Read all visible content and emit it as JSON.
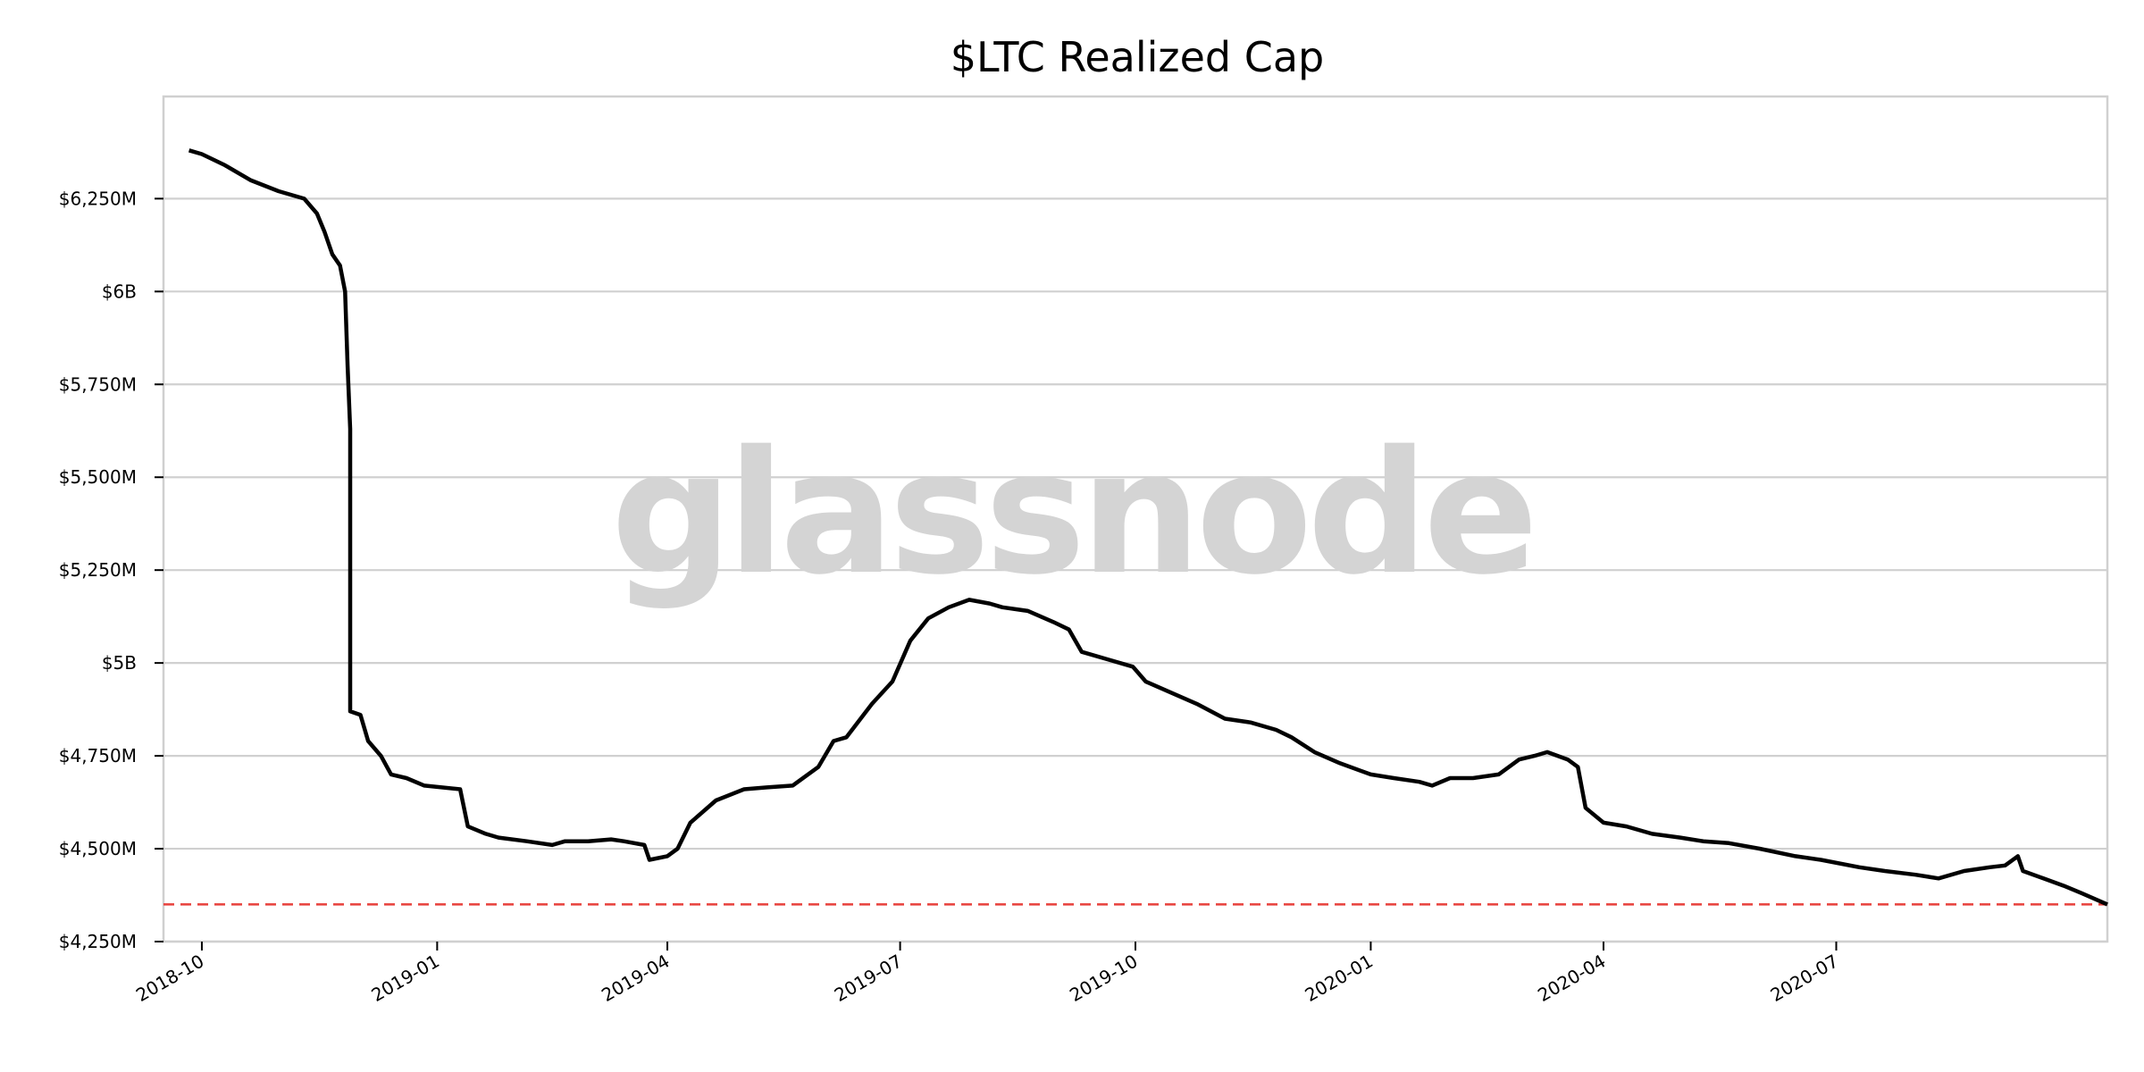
{
  "watermark": "glassnode",
  "chart_data": {
    "type": "line",
    "title": "$LTC Realized Cap",
    "xlabel": "",
    "ylabel": "",
    "x_axis": "date",
    "xlim": [
      "2018-09-16",
      "2020-10-15"
    ],
    "ylim": [
      4250,
      6525
    ],
    "y_unit": "millions USD",
    "grid": "horizontal",
    "x_ticks": [
      {
        "date": "2018-10-01",
        "label": "2018-10"
      },
      {
        "date": "2019-01-01",
        "label": "2019-01"
      },
      {
        "date": "2019-04-01",
        "label": "2019-04"
      },
      {
        "date": "2019-07-01",
        "label": "2019-07"
      },
      {
        "date": "2019-10-01",
        "label": "2019-10"
      },
      {
        "date": "2020-01-01",
        "label": "2020-01"
      },
      {
        "date": "2020-04-01",
        "label": "2020-04"
      },
      {
        "date": "2020-07-01",
        "label": "2020-07"
      }
    ],
    "y_ticks": [
      {
        "value": 4250,
        "label": "$4,250M"
      },
      {
        "value": 4500,
        "label": "$4,500M"
      },
      {
        "value": 4750,
        "label": "$4,750M"
      },
      {
        "value": 5000,
        "label": "$5B"
      },
      {
        "value": 5250,
        "label": "$5,250M"
      },
      {
        "value": 5500,
        "label": "$5,500M"
      },
      {
        "value": 5750,
        "label": "$5,750M"
      },
      {
        "value": 6000,
        "label": "$6B"
      },
      {
        "value": 6250,
        "label": "$6,250M"
      }
    ],
    "reference_line": {
      "value": 4350,
      "style": "dashed",
      "color": "#e8413c"
    },
    "series": [
      {
        "color": "#000000",
        "points": [
          [
            "2018-09-26",
            6380
          ],
          [
            "2018-10-01",
            6370
          ],
          [
            "2018-10-10",
            6340
          ],
          [
            "2018-10-20",
            6300
          ],
          [
            "2018-10-31",
            6270
          ],
          [
            "2018-11-10",
            6250
          ],
          [
            "2018-11-15",
            6210
          ],
          [
            "2018-11-18",
            6160
          ],
          [
            "2018-11-21",
            6100
          ],
          [
            "2018-11-24",
            6070
          ],
          [
            "2018-11-26",
            6000
          ],
          [
            "2018-11-27",
            5800
          ],
          [
            "2018-11-28",
            5630
          ],
          [
            "2018-11-28",
            4870
          ],
          [
            "2018-12-02",
            4860
          ],
          [
            "2018-12-05",
            4790
          ],
          [
            "2018-12-10",
            4750
          ],
          [
            "2018-12-14",
            4700
          ],
          [
            "2018-12-20",
            4690
          ],
          [
            "2018-12-27",
            4670
          ],
          [
            "2019-01-10",
            4660
          ],
          [
            "2019-01-13",
            4560
          ],
          [
            "2019-01-20",
            4540
          ],
          [
            "2019-01-25",
            4530
          ],
          [
            "2019-02-05",
            4520
          ],
          [
            "2019-02-15",
            4510
          ],
          [
            "2019-02-20",
            4520
          ],
          [
            "2019-03-01",
            4520
          ],
          [
            "2019-03-10",
            4525
          ],
          [
            "2019-03-15",
            4520
          ],
          [
            "2019-03-23",
            4510
          ],
          [
            "2019-03-25",
            4470
          ],
          [
            "2019-04-01",
            4480
          ],
          [
            "2019-04-05",
            4500
          ],
          [
            "2019-04-10",
            4570
          ],
          [
            "2019-04-20",
            4630
          ],
          [
            "2019-05-01",
            4660
          ],
          [
            "2019-05-10",
            4665
          ],
          [
            "2019-05-20",
            4670
          ],
          [
            "2019-05-30",
            4720
          ],
          [
            "2019-06-05",
            4790
          ],
          [
            "2019-06-10",
            4800
          ],
          [
            "2019-06-20",
            4890
          ],
          [
            "2019-06-28",
            4950
          ],
          [
            "2019-07-05",
            5060
          ],
          [
            "2019-07-12",
            5120
          ],
          [
            "2019-07-20",
            5150
          ],
          [
            "2019-07-28",
            5170
          ],
          [
            "2019-08-05",
            5160
          ],
          [
            "2019-08-10",
            5150
          ],
          [
            "2019-08-20",
            5140
          ],
          [
            "2019-08-30",
            5110
          ],
          [
            "2019-09-05",
            5090
          ],
          [
            "2019-09-10",
            5030
          ],
          [
            "2019-09-20",
            5010
          ],
          [
            "2019-09-30",
            4990
          ],
          [
            "2019-10-05",
            4950
          ],
          [
            "2019-10-15",
            4920
          ],
          [
            "2019-10-25",
            4890
          ],
          [
            "2019-11-05",
            4850
          ],
          [
            "2019-11-15",
            4840
          ],
          [
            "2019-11-25",
            4820
          ],
          [
            "2019-12-01",
            4800
          ],
          [
            "2019-12-10",
            4760
          ],
          [
            "2019-12-20",
            4730
          ],
          [
            "2020-01-01",
            4700
          ],
          [
            "2020-01-10",
            4690
          ],
          [
            "2020-01-20",
            4680
          ],
          [
            "2020-01-25",
            4670
          ],
          [
            "2020-02-01",
            4690
          ],
          [
            "2020-02-10",
            4690
          ],
          [
            "2020-02-20",
            4700
          ],
          [
            "2020-02-28",
            4740
          ],
          [
            "2020-03-05",
            4750
          ],
          [
            "2020-03-10",
            4760
          ],
          [
            "2020-03-18",
            4740
          ],
          [
            "2020-03-22",
            4720
          ],
          [
            "2020-03-25",
            4610
          ],
          [
            "2020-04-01",
            4570
          ],
          [
            "2020-04-10",
            4560
          ],
          [
            "2020-04-20",
            4540
          ],
          [
            "2020-05-01",
            4530
          ],
          [
            "2020-05-10",
            4520
          ],
          [
            "2020-05-20",
            4515
          ],
          [
            "2020-06-01",
            4500
          ],
          [
            "2020-06-15",
            4480
          ],
          [
            "2020-06-25",
            4470
          ],
          [
            "2020-07-10",
            4450
          ],
          [
            "2020-07-20",
            4440
          ],
          [
            "2020-08-01",
            4430
          ],
          [
            "2020-08-10",
            4420
          ],
          [
            "2020-08-20",
            4440
          ],
          [
            "2020-08-30",
            4450
          ],
          [
            "2020-09-05",
            4455
          ],
          [
            "2020-09-10",
            4480
          ],
          [
            "2020-09-12",
            4440
          ],
          [
            "2020-09-20",
            4420
          ],
          [
            "2020-09-28",
            4400
          ],
          [
            "2020-10-05",
            4380
          ],
          [
            "2020-10-15",
            4350
          ]
        ]
      }
    ]
  }
}
